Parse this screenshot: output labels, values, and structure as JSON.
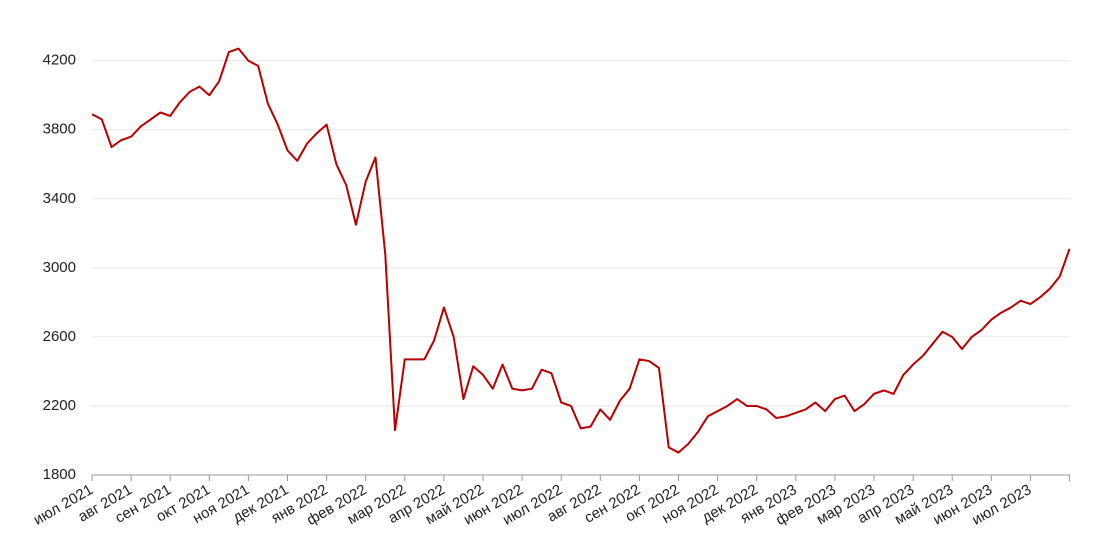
{
  "chart_data": {
    "type": "line",
    "color": "#b80000",
    "grid": true,
    "ylim": [
      1800,
      4320
    ],
    "yticks": [
      1800,
      2200,
      2600,
      3000,
      3400,
      3800,
      4200
    ],
    "categories": [
      "июл 2021",
      null,
      null,
      null,
      "авг 2021",
      null,
      null,
      null,
      "сен 2021",
      null,
      null,
      null,
      "окт 2021",
      null,
      null,
      null,
      "ноя 2021",
      null,
      null,
      null,
      "дек 2021",
      null,
      null,
      null,
      "янв 2022",
      null,
      null,
      null,
      "фев 2022",
      null,
      null,
      null,
      "мар 2022",
      null,
      null,
      null,
      "апр 2022",
      null,
      null,
      null,
      "май 2022",
      null,
      null,
      null,
      "июн 2022",
      null,
      null,
      null,
      "июл 2022",
      null,
      null,
      null,
      "авг 2022",
      null,
      null,
      null,
      "сен 2022",
      null,
      null,
      null,
      "окт 2022",
      null,
      null,
      null,
      "ноя 2022",
      null,
      null,
      null,
      "дек 2022",
      null,
      null,
      null,
      "янв 2023",
      null,
      null,
      null,
      "фев 2023",
      null,
      null,
      null,
      "мар 2023",
      null,
      null,
      null,
      "апр 2023",
      null,
      null,
      null,
      "май 2023",
      null,
      null,
      null,
      "июн 2023",
      null,
      null,
      null,
      "июл 2023",
      null,
      null,
      null,
      null
    ],
    "values": [
      3890,
      3860,
      3700,
      3740,
      3760,
      3820,
      3860,
      3900,
      3880,
      3960,
      4020,
      4050,
      4000,
      4080,
      4250,
      4270,
      4200,
      4170,
      3950,
      3830,
      3680,
      3620,
      3720,
      3780,
      3830,
      3600,
      3480,
      3250,
      3500,
      3640,
      3080,
      2060,
      2470,
      2470,
      2470,
      2580,
      2770,
      2600,
      2240,
      2430,
      2380,
      2300,
      2440,
      2300,
      2290,
      2300,
      2410,
      2390,
      2220,
      2200,
      2070,
      2080,
      2180,
      2120,
      2230,
      2300,
      2470,
      2460,
      2420,
      1960,
      1930,
      1980,
      2050,
      2140,
      2170,
      2200,
      2240,
      2200,
      2200,
      2180,
      2130,
      2140,
      2160,
      2180,
      2220,
      2170,
      2240,
      2260,
      2170,
      2210,
      2270,
      2290,
      2270,
      2380,
      2440,
      2490,
      2560,
      2630,
      2600,
      2530,
      2600,
      2640,
      2700,
      2740,
      2770,
      2810,
      2790,
      2830,
      2880,
      2950,
      3110
    ]
  }
}
